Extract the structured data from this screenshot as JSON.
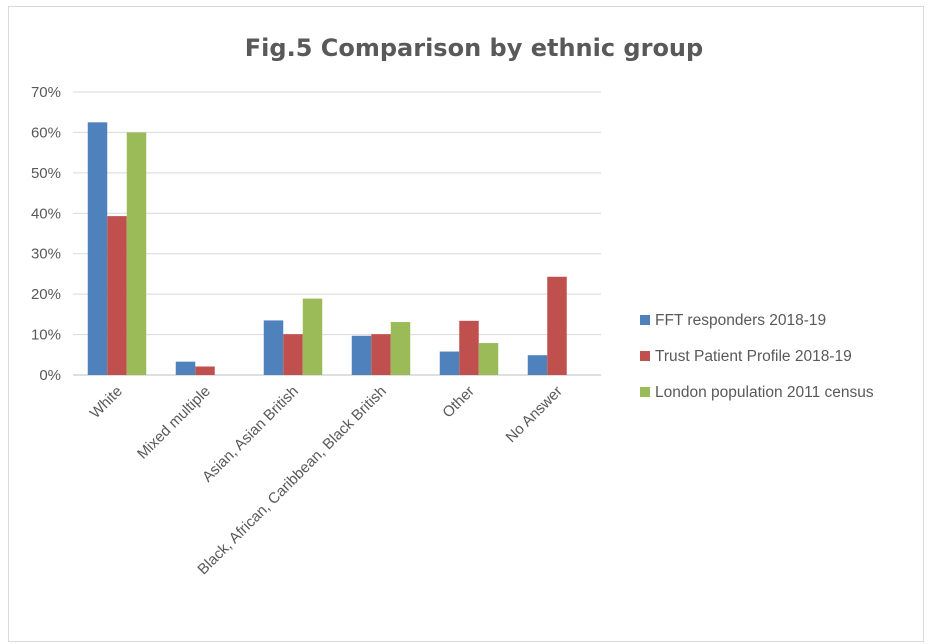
{
  "chart_data": {
    "type": "bar",
    "title": "Fig.5 Comparison by ethnic group",
    "xlabel": "",
    "ylabel": "",
    "categories": [
      "White",
      "Mixed multiple",
      "Asian, Asian British",
      "Black, African, Caribbean, Black British",
      "Other",
      "No Answer"
    ],
    "series": [
      {
        "name": "FFT responders 2018-19",
        "color": "#4f81bd",
        "values": [
          62.5,
          3.3,
          13.5,
          9.7,
          5.8,
          4.9
        ]
      },
      {
        "name": "Trust Patient Profile 2018-19",
        "color": "#c0504d",
        "values": [
          39.3,
          2.1,
          10.1,
          10.1,
          13.4,
          24.3
        ]
      },
      {
        "name": "London population 2011 census",
        "color": "#9bbb59",
        "values": [
          60.0,
          null,
          18.9,
          13.1,
          7.9,
          null
        ]
      }
    ],
    "ylim": [
      0,
      70
    ],
    "yticks": [
      "0%",
      "10%",
      "20%",
      "30%",
      "40%",
      "50%",
      "60%",
      "70%"
    ],
    "grid": true,
    "legend_position": "right"
  }
}
